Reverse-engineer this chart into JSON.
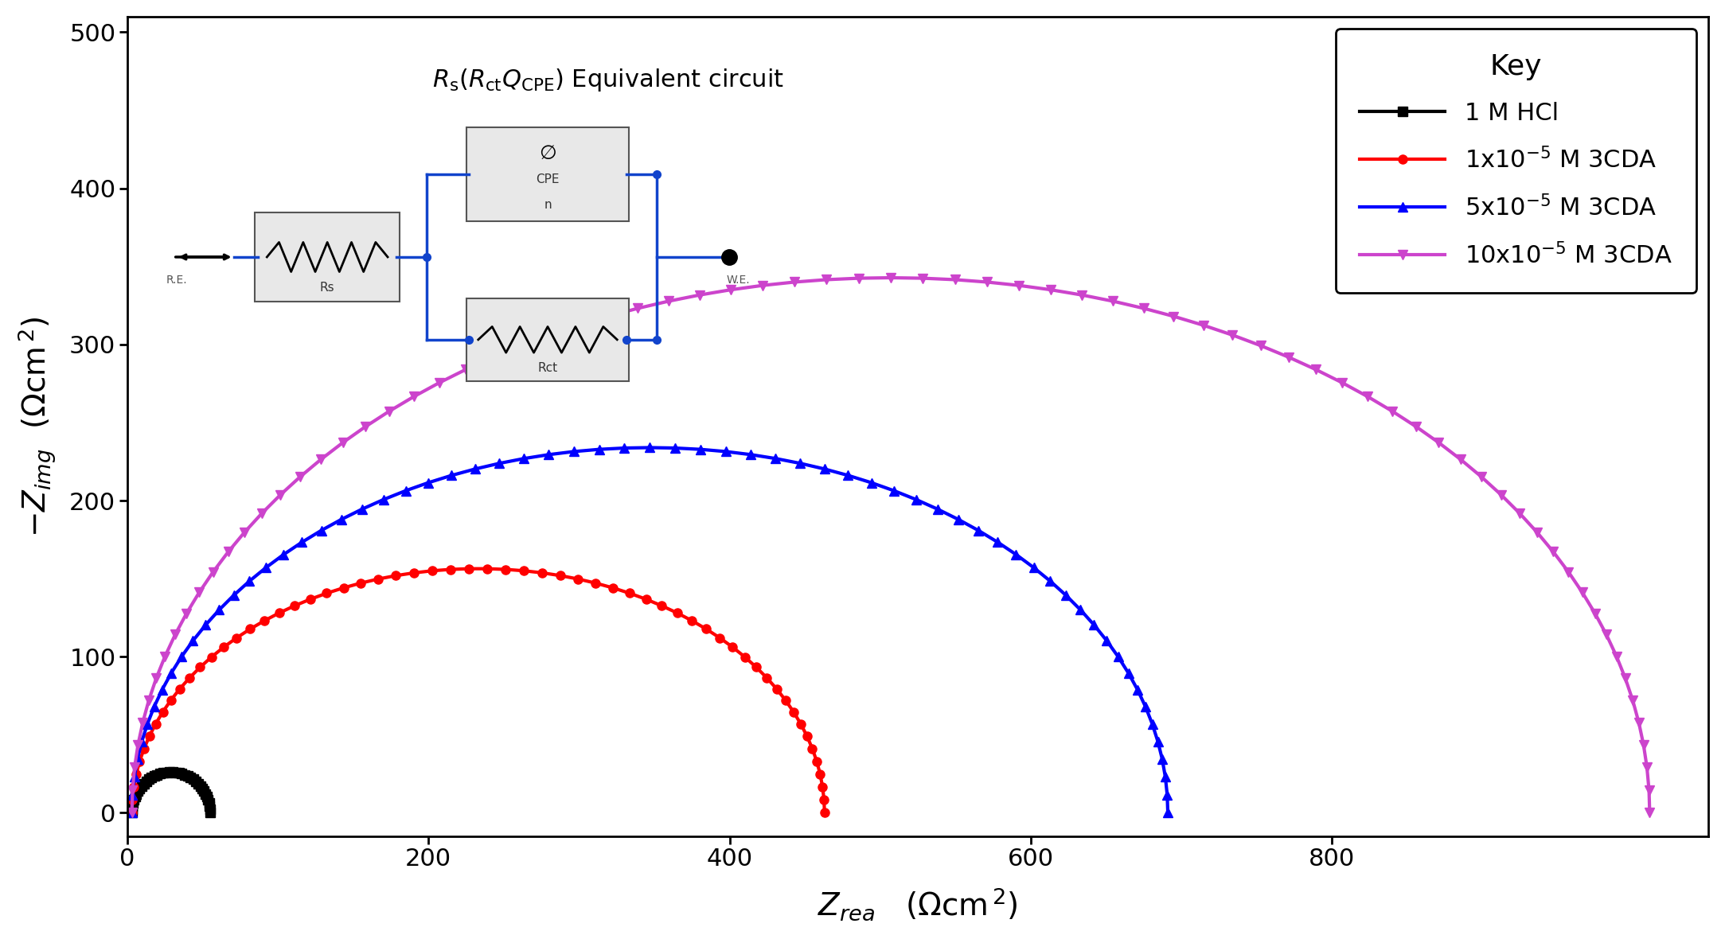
{
  "xlim": [
    0,
    1050
  ],
  "ylim": [
    -15,
    510
  ],
  "xticks": [
    0,
    200,
    400,
    600,
    800
  ],
  "yticks": [
    0,
    100,
    200,
    300,
    400,
    500
  ],
  "series": [
    {
      "label": "1 M HCl",
      "color": "#000000",
      "marker": "s",
      "markersize": 9,
      "linewidth": 3.0,
      "R0": 3,
      "Rct": 52,
      "depression": 0.0,
      "n_points": 40
    },
    {
      "label_prefix": "1x10",
      "label_suffix": " M 3CDA",
      "exp": "-5",
      "color": "#ff0000",
      "marker": "o",
      "markersize": 8,
      "linewidth": 3.0,
      "R0": 3,
      "Rct": 460,
      "depression": 0.32,
      "n_points": 60
    },
    {
      "label_prefix": "5x10",
      "label_suffix": " M 3CDA",
      "exp": "-5",
      "color": "#0000ff",
      "marker": "^",
      "markersize": 8,
      "linewidth": 3.0,
      "R0": 3,
      "Rct": 688,
      "depression": 0.32,
      "n_points": 65
    },
    {
      "label_prefix": "10x10",
      "label_suffix": " M 3CDA",
      "exp": "-5",
      "color": "#cc44cc",
      "marker": "v",
      "markersize": 8,
      "linewidth": 3.0,
      "R0": 3,
      "Rct": 1008,
      "depression": 0.32,
      "n_points": 75
    }
  ],
  "legend_title": "Key",
  "background": "#ffffff",
  "circuit_color": "#1144cc",
  "circuit_box_fill": "#e8e8e8",
  "tick_labelsize": 22,
  "xlabel_fontsize": 28,
  "ylabel_fontsize": 28
}
